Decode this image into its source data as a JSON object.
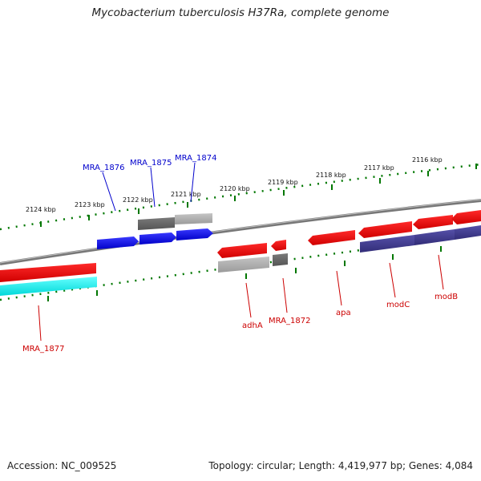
{
  "title": "Mycobacterium tuberculosis H37Ra, complete genome",
  "footer": {
    "accession": "Accession: NC_009525",
    "summary": "Topology: circular; Length: 4,419,977 bp; Genes: 4,084"
  },
  "kbp_labels": [
    "2124 kbp",
    "2123 kbp",
    "2122 kbp",
    "2121 kbp",
    "2120 kbp",
    "2119 kbp",
    "2118 kbp",
    "2117 kbp",
    "2116 kbp"
  ],
  "genes_forward": [
    "MRA_1876",
    "MRA_1875",
    "MRA_1874"
  ],
  "genes_reverse": [
    "MRA_1877",
    "adhA",
    "MRA_1872",
    "apa",
    "modC",
    "modB"
  ],
  "colors": {
    "forward_label": "#0000cc",
    "reverse_label": "#cc0000",
    "forward_cds": "#0000ee",
    "reverse_cds": "#ee0000",
    "gray_dark": "#666666",
    "gray_light": "#aaaaaa",
    "cyan": "#00eeee",
    "purple": "#3f3a8c",
    "backbone": "#777777",
    "tick": "#007700"
  }
}
